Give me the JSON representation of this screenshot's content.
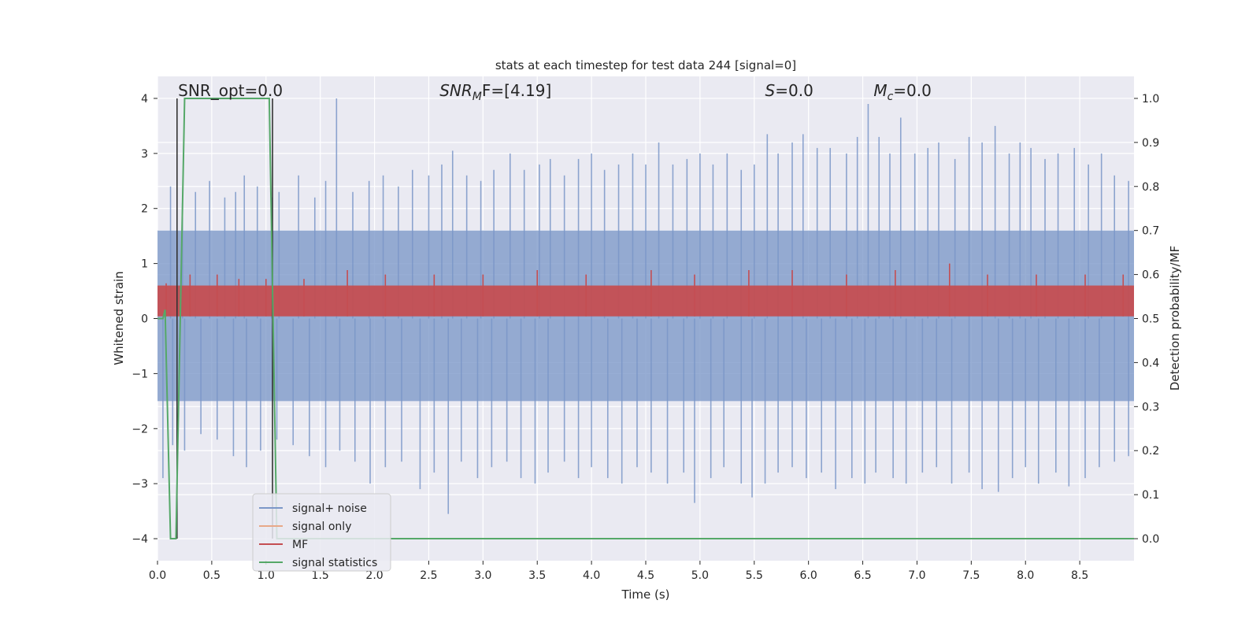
{
  "chart_data": {
    "type": "line",
    "title": "stats at each timestep for test data 244 [signal=0]",
    "xlabel": "Time (s)",
    "ylabel_left": "Whitened strain",
    "ylabel_right": "Detection probability/MF",
    "xlim": [
      0.0,
      9.0
    ],
    "ylim_left": [
      -4.4,
      4.4
    ],
    "ylim_right": [
      -0.05,
      1.05
    ],
    "xticks": [
      0.0,
      0.5,
      1.0,
      1.5,
      2.0,
      2.5,
      3.0,
      3.5,
      4.0,
      4.5,
      5.0,
      5.5,
      6.0,
      6.5,
      7.0,
      7.5,
      8.0,
      8.5
    ],
    "xtick_labels": [
      "0.0",
      "0.5",
      "1.0",
      "1.5",
      "2.0",
      "2.5",
      "3.0",
      "3.5",
      "4.0",
      "4.5",
      "5.0",
      "5.5",
      "6.0",
      "6.5",
      "7.0",
      "7.5",
      "8.0",
      "8.5"
    ],
    "yticks_left": [
      -4,
      -3,
      -2,
      -1,
      0,
      1,
      2,
      3,
      4
    ],
    "ytick_labels_left": [
      "−4",
      "−3",
      "−2",
      "−1",
      "0",
      "1",
      "2",
      "3",
      "4"
    ],
    "yticks_right": [
      0.0,
      0.1,
      0.2,
      0.3,
      0.4,
      0.5,
      0.6,
      0.7,
      0.8,
      0.9,
      1.0
    ],
    "ytick_labels_right": [
      "0.0",
      "0.1",
      "0.2",
      "0.3",
      "0.4",
      "0.5",
      "0.6",
      "0.7",
      "0.8",
      "0.9",
      "1.0"
    ],
    "grid": true,
    "legend_position": "lower-left",
    "annotations": [
      {
        "x": 0.19,
        "y": 4.1,
        "text": "SNR_opt=0.0"
      },
      {
        "x": 2.6,
        "y": 4.1,
        "text": "SNR",
        "sub": "M",
        "rest": "F=[4.19]"
      },
      {
        "x": 5.6,
        "y": 4.1,
        "text": "S",
        "rest": "=0.0"
      },
      {
        "x": 6.6,
        "y": 4.1,
        "text": "M",
        "sub": "c",
        "rest": "=0.0"
      }
    ],
    "series": [
      {
        "name": "signal+ noise",
        "axis": "left",
        "color": "#7b97c8",
        "band": {
          "upper_bulk": 1.6,
          "lower_bulk": -1.5
        },
        "upper_spikes": [
          [
            0.12,
            2.4
          ],
          [
            0.23,
            2.1
          ],
          [
            0.35,
            2.3
          ],
          [
            0.48,
            2.5
          ],
          [
            0.62,
            2.2
          ],
          [
            0.72,
            2.3
          ],
          [
            0.8,
            2.6
          ],
          [
            0.92,
            2.4
          ],
          [
            1.05,
            2.2
          ],
          [
            1.12,
            2.3
          ],
          [
            1.3,
            2.6
          ],
          [
            1.45,
            2.2
          ],
          [
            1.55,
            2.5
          ],
          [
            1.65,
            4.0
          ],
          [
            1.8,
            2.3
          ],
          [
            1.95,
            2.5
          ],
          [
            2.08,
            2.6
          ],
          [
            2.22,
            2.4
          ],
          [
            2.35,
            2.7
          ],
          [
            2.5,
            2.6
          ],
          [
            2.62,
            2.8
          ],
          [
            2.72,
            3.05
          ],
          [
            2.85,
            2.6
          ],
          [
            2.98,
            2.5
          ],
          [
            3.1,
            2.7
          ],
          [
            3.25,
            3.0
          ],
          [
            3.38,
            2.7
          ],
          [
            3.52,
            2.8
          ],
          [
            3.62,
            2.9
          ],
          [
            3.75,
            2.6
          ],
          [
            3.88,
            2.9
          ],
          [
            4.0,
            3.0
          ],
          [
            4.12,
            2.7
          ],
          [
            4.25,
            2.8
          ],
          [
            4.38,
            3.0
          ],
          [
            4.5,
            2.8
          ],
          [
            4.62,
            3.2
          ],
          [
            4.75,
            2.8
          ],
          [
            4.88,
            2.9
          ],
          [
            5.0,
            3.0
          ],
          [
            5.12,
            2.8
          ],
          [
            5.25,
            3.0
          ],
          [
            5.38,
            2.7
          ],
          [
            5.5,
            2.8
          ],
          [
            5.62,
            3.35
          ],
          [
            5.72,
            3.0
          ],
          [
            5.85,
            3.2
          ],
          [
            5.95,
            3.35
          ],
          [
            6.08,
            3.1
          ],
          [
            6.2,
            3.1
          ],
          [
            6.35,
            3.0
          ],
          [
            6.45,
            3.3
          ],
          [
            6.55,
            3.9
          ],
          [
            6.65,
            3.3
          ],
          [
            6.75,
            3.0
          ],
          [
            6.85,
            3.65
          ],
          [
            6.98,
            3.0
          ],
          [
            7.1,
            3.1
          ],
          [
            7.2,
            3.2
          ],
          [
            7.35,
            2.9
          ],
          [
            7.48,
            3.3
          ],
          [
            7.6,
            3.2
          ],
          [
            7.72,
            3.5
          ],
          [
            7.85,
            3.0
          ],
          [
            7.95,
            3.2
          ],
          [
            8.05,
            3.1
          ],
          [
            8.18,
            2.9
          ],
          [
            8.3,
            3.0
          ],
          [
            8.45,
            3.1
          ],
          [
            8.58,
            2.8
          ],
          [
            8.7,
            3.0
          ],
          [
            8.82,
            2.6
          ],
          [
            8.95,
            2.5
          ]
        ],
        "lower_spikes": [
          [
            0.05,
            -2.9
          ],
          [
            0.14,
            -2.3
          ],
          [
            0.25,
            -2.4
          ],
          [
            0.4,
            -2.1
          ],
          [
            0.55,
            -2.2
          ],
          [
            0.7,
            -2.5
          ],
          [
            0.82,
            -2.7
          ],
          [
            0.95,
            -2.4
          ],
          [
            1.1,
            -2.2
          ],
          [
            1.25,
            -2.3
          ],
          [
            1.4,
            -2.5
          ],
          [
            1.55,
            -2.7
          ],
          [
            1.68,
            -2.4
          ],
          [
            1.82,
            -2.6
          ],
          [
            1.96,
            -3.0
          ],
          [
            2.1,
            -2.7
          ],
          [
            2.25,
            -2.6
          ],
          [
            2.42,
            -3.1
          ],
          [
            2.55,
            -2.8
          ],
          [
            2.68,
            -3.55
          ],
          [
            2.8,
            -2.6
          ],
          [
            2.95,
            -2.9
          ],
          [
            3.08,
            -2.7
          ],
          [
            3.22,
            -2.6
          ],
          [
            3.35,
            -2.9
          ],
          [
            3.48,
            -3.0
          ],
          [
            3.6,
            -2.8
          ],
          [
            3.75,
            -2.6
          ],
          [
            3.88,
            -2.9
          ],
          [
            4.0,
            -2.7
          ],
          [
            4.15,
            -2.9
          ],
          [
            4.28,
            -3.0
          ],
          [
            4.42,
            -2.7
          ],
          [
            4.55,
            -2.8
          ],
          [
            4.7,
            -3.0
          ],
          [
            4.85,
            -2.8
          ],
          [
            4.95,
            -3.35
          ],
          [
            5.1,
            -2.9
          ],
          [
            5.22,
            -2.7
          ],
          [
            5.38,
            -3.0
          ],
          [
            5.48,
            -3.25
          ],
          [
            5.6,
            -3.0
          ],
          [
            5.72,
            -2.8
          ],
          [
            5.85,
            -2.7
          ],
          [
            5.98,
            -2.9
          ],
          [
            6.12,
            -2.8
          ],
          [
            6.25,
            -3.1
          ],
          [
            6.4,
            -2.9
          ],
          [
            6.52,
            -3.0
          ],
          [
            6.62,
            -2.8
          ],
          [
            6.78,
            -2.9
          ],
          [
            6.9,
            -3.0
          ],
          [
            7.05,
            -2.8
          ],
          [
            7.18,
            -2.7
          ],
          [
            7.32,
            -3.0
          ],
          [
            7.48,
            -2.8
          ],
          [
            7.6,
            -3.1
          ],
          [
            7.75,
            -3.15
          ],
          [
            7.88,
            -2.9
          ],
          [
            8.0,
            -2.7
          ],
          [
            8.12,
            -3.0
          ],
          [
            8.28,
            -2.8
          ],
          [
            8.4,
            -3.05
          ],
          [
            8.55,
            -2.9
          ],
          [
            8.68,
            -2.7
          ],
          [
            8.82,
            -2.6
          ],
          [
            8.95,
            -2.5
          ]
        ]
      },
      {
        "name": "signal only",
        "axis": "left",
        "color": "#e8a888",
        "values_x": [
          0.0,
          9.0
        ],
        "values_y": [
          0.0,
          0.0
        ]
      },
      {
        "name": "MF",
        "axis": "right",
        "color": "#c44e52",
        "band": {
          "lower": 0.505,
          "upper": 0.575
        },
        "spikes": [
          [
            0.08,
            0.58
          ],
          [
            0.3,
            0.6
          ],
          [
            0.55,
            0.6
          ],
          [
            0.75,
            0.59
          ],
          [
            1.0,
            0.59
          ],
          [
            1.35,
            0.59
          ],
          [
            1.75,
            0.61
          ],
          [
            2.1,
            0.6
          ],
          [
            2.55,
            0.6
          ],
          [
            3.0,
            0.6
          ],
          [
            3.5,
            0.61
          ],
          [
            3.95,
            0.6
          ],
          [
            4.55,
            0.61
          ],
          [
            4.95,
            0.6
          ],
          [
            5.45,
            0.61
          ],
          [
            5.85,
            0.61
          ],
          [
            6.35,
            0.6
          ],
          [
            6.8,
            0.61
          ],
          [
            7.3,
            0.625
          ],
          [
            7.65,
            0.6
          ],
          [
            8.1,
            0.6
          ],
          [
            8.55,
            0.6
          ],
          [
            8.9,
            0.6
          ]
        ]
      },
      {
        "name": "signal statistics",
        "axis": "right",
        "color": "#55a868",
        "values_x": [
          0.0,
          0.05,
          0.07,
          0.12,
          0.17,
          0.25,
          0.3,
          1.0,
          1.03,
          1.1,
          1.15,
          9.0
        ],
        "values_y": [
          0.5,
          0.5,
          0.52,
          0.0,
          0.0,
          1.0,
          1.0,
          1.0,
          1.0,
          0.0,
          0.0,
          0.0
        ]
      }
    ],
    "vertical_markers": [
      {
        "x": 0.18,
        "color": "#333333"
      },
      {
        "x": 1.06,
        "color": "#333333"
      }
    ]
  }
}
